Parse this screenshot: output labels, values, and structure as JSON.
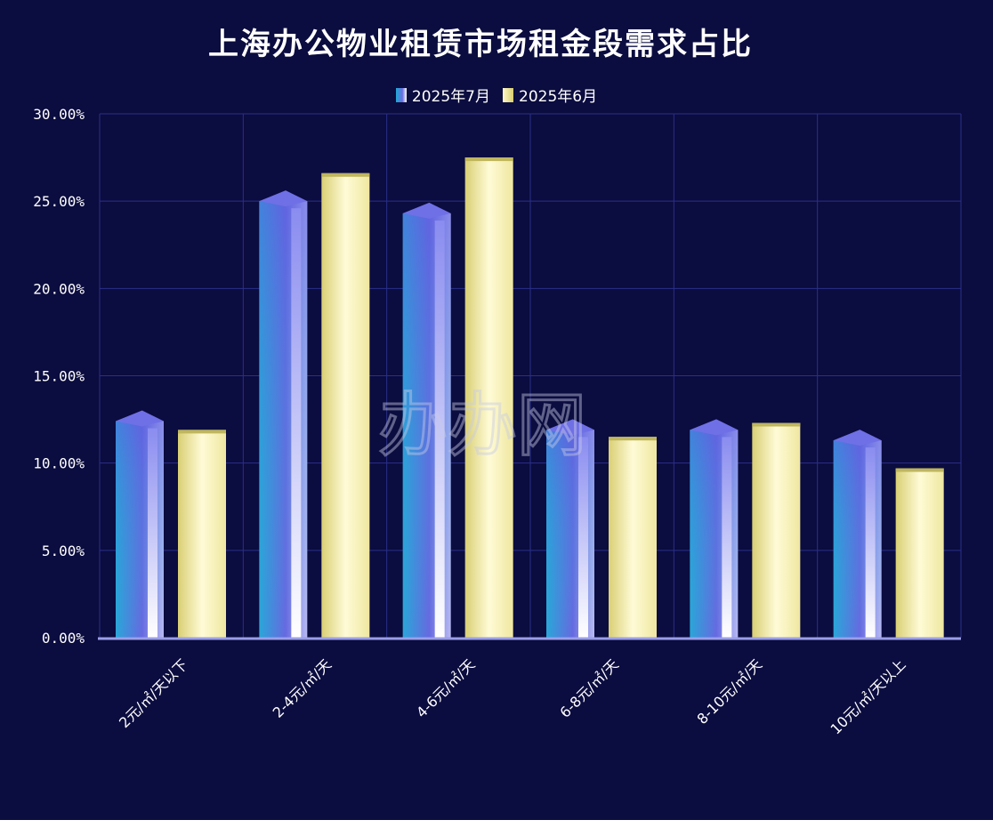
{
  "chart_data": {
    "type": "bar",
    "title": "上海办公物业租赁市场租金段需求占比",
    "categories": [
      "2元/㎡/天以下",
      "2-4元/㎡/天",
      "4-6元/㎡/天",
      "6-8元/㎡/天",
      "8-10元/㎡/天",
      "10元/㎡/天以上"
    ],
    "series": [
      {
        "name": "2025年7月",
        "values": [
          12.4,
          25.0,
          24.3,
          11.9,
          11.9,
          11.3
        ]
      },
      {
        "name": "2025年6月",
        "values": [
          11.9,
          26.6,
          27.5,
          11.5,
          12.3,
          9.7
        ]
      }
    ],
    "y_ticks": [
      "0.00%",
      "5.00%",
      "10.00%",
      "15.00%",
      "20.00%",
      "25.00%",
      "30.00%"
    ],
    "ylim": [
      0,
      30
    ],
    "grid": true,
    "legend_position": "top-center",
    "colors": {
      "background": "#0b0c3f",
      "series_jul": "#5a5ee0",
      "series_jun": "#f3eda8",
      "grid": "#2a2f8a"
    }
  },
  "watermark": "办办网"
}
